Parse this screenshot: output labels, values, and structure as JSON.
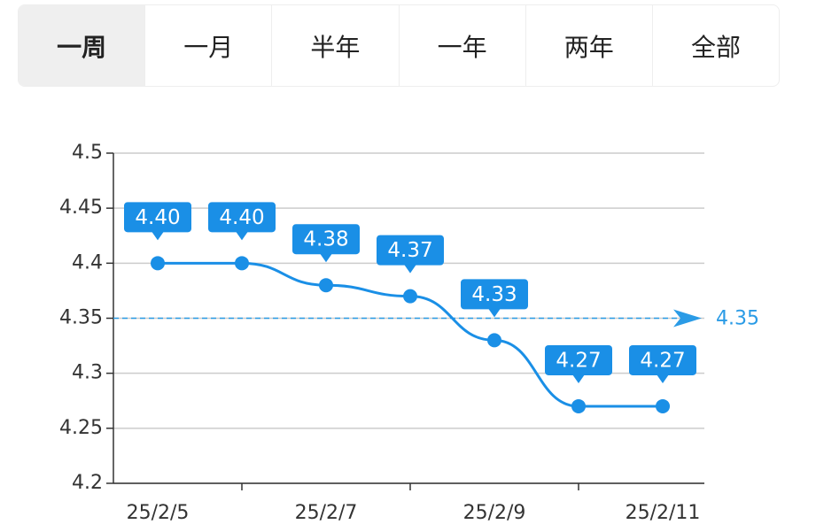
{
  "tabs": [
    "一周",
    "一月",
    "半年",
    "一年",
    "两年",
    "全部"
  ],
  "chart_data": {
    "type": "line",
    "categories": [
      "25/2/5",
      null,
      "25/2/7",
      null,
      "25/2/9",
      null,
      "25/2/11"
    ],
    "values": [
      4.4,
      4.4,
      4.38,
      4.37,
      4.33,
      4.27,
      4.27
    ],
    "value_labels": [
      "4.40",
      "4.40",
      "4.38",
      "4.37",
      "4.33",
      "4.27",
      "4.27"
    ],
    "color": "#1a8fe6",
    "ylim": [
      4.2,
      4.5
    ],
    "yticks": [
      4.2,
      4.25,
      4.3,
      4.35,
      4.4,
      4.45,
      4.5
    ],
    "grid": true,
    "reference_line": 4.35
  }
}
